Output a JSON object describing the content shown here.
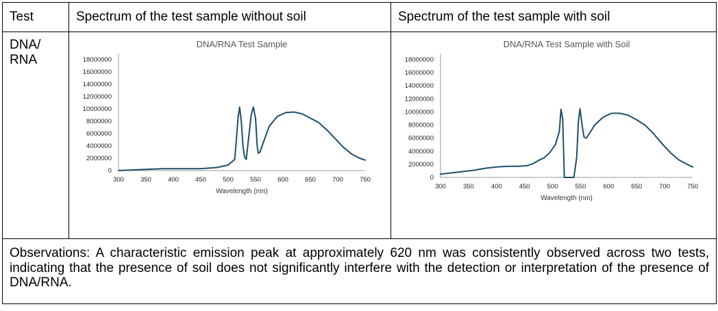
{
  "table": {
    "headers": [
      "Test",
      "Spectrum of the test sample without soil",
      "Spectrum of the test sample with soil"
    ],
    "row_label": "DNA/ RNA",
    "observations": "Observations: A characteristic emission peak at approximately 620 nm was consistently observed across two tests, indicating that the presence of soil does not significantly interfere with the detection or interpretation of the presence of DNA/RNA."
  },
  "colors": {
    "line": "#1b4f6b",
    "axis": "#999999"
  },
  "chart_data": [
    {
      "type": "line",
      "title": "DNA/RNA Test Sample",
      "xlabel": "Wavelength (nm)",
      "ylabel": "",
      "xlim": [
        300,
        750
      ],
      "ylim": [
        0,
        18000000
      ],
      "xticks": [
        300,
        350,
        400,
        450,
        500,
        550,
        600,
        650,
        700,
        750
      ],
      "yticks": [
        0,
        2000000,
        4000000,
        6000000,
        8000000,
        10000000,
        12000000,
        14000000,
        16000000,
        18000000
      ],
      "x": [
        300,
        350,
        380,
        450,
        480,
        500,
        512,
        515,
        518,
        521,
        524,
        527,
        530,
        533,
        537,
        542,
        546,
        550,
        553,
        555,
        558,
        562,
        568,
        575,
        590,
        605,
        620,
        635,
        650,
        665,
        680,
        695,
        710,
        725,
        740,
        750
      ],
      "y": [
        0,
        200000,
        300000,
        300000,
        500000,
        900000,
        1800000,
        5000000,
        8500000,
        10300000,
        8000000,
        4000000,
        2200000,
        1800000,
        5000000,
        9000000,
        10300000,
        8500000,
        4000000,
        2800000,
        3000000,
        4000000,
        5500000,
        7200000,
        8800000,
        9400000,
        9500000,
        9200000,
        8500000,
        7800000,
        6600000,
        5200000,
        3800000,
        2700000,
        2000000,
        1700000
      ]
    },
    {
      "type": "line",
      "title": "DNA/RNA Test Sample with Soil",
      "xlabel": "Wavelength (nm)",
      "ylabel": "",
      "xlim": [
        300,
        750
      ],
      "ylim": [
        0,
        18000000
      ],
      "xticks": [
        300,
        350,
        400,
        450,
        500,
        550,
        600,
        650,
        700,
        750
      ],
      "yticks": [
        0,
        2000000,
        4000000,
        6000000,
        8000000,
        10000000,
        12000000,
        14000000,
        16000000,
        18000000
      ],
      "x": [
        300,
        330,
        360,
        380,
        400,
        420,
        440,
        455,
        465,
        475,
        485,
        495,
        505,
        512,
        515,
        518,
        521,
        524,
        527,
        530,
        538,
        543,
        546,
        549,
        553,
        556,
        560,
        565,
        575,
        590,
        605,
        620,
        635,
        650,
        665,
        680,
        695,
        710,
        725,
        740,
        750
      ],
      "y": [
        500000,
        800000,
        1100000,
        1400000,
        1600000,
        1700000,
        1700000,
        1800000,
        2100000,
        2600000,
        3000000,
        3800000,
        5000000,
        7000000,
        10400000,
        9000000,
        0,
        0,
        0,
        0,
        0,
        3000000,
        8500000,
        10500000,
        7800000,
        6200000,
        6000000,
        6600000,
        8000000,
        9200000,
        9800000,
        9800000,
        9500000,
        8800000,
        8000000,
        6700000,
        5200000,
        3800000,
        2700000,
        2000000,
        1600000
      ]
    }
  ]
}
